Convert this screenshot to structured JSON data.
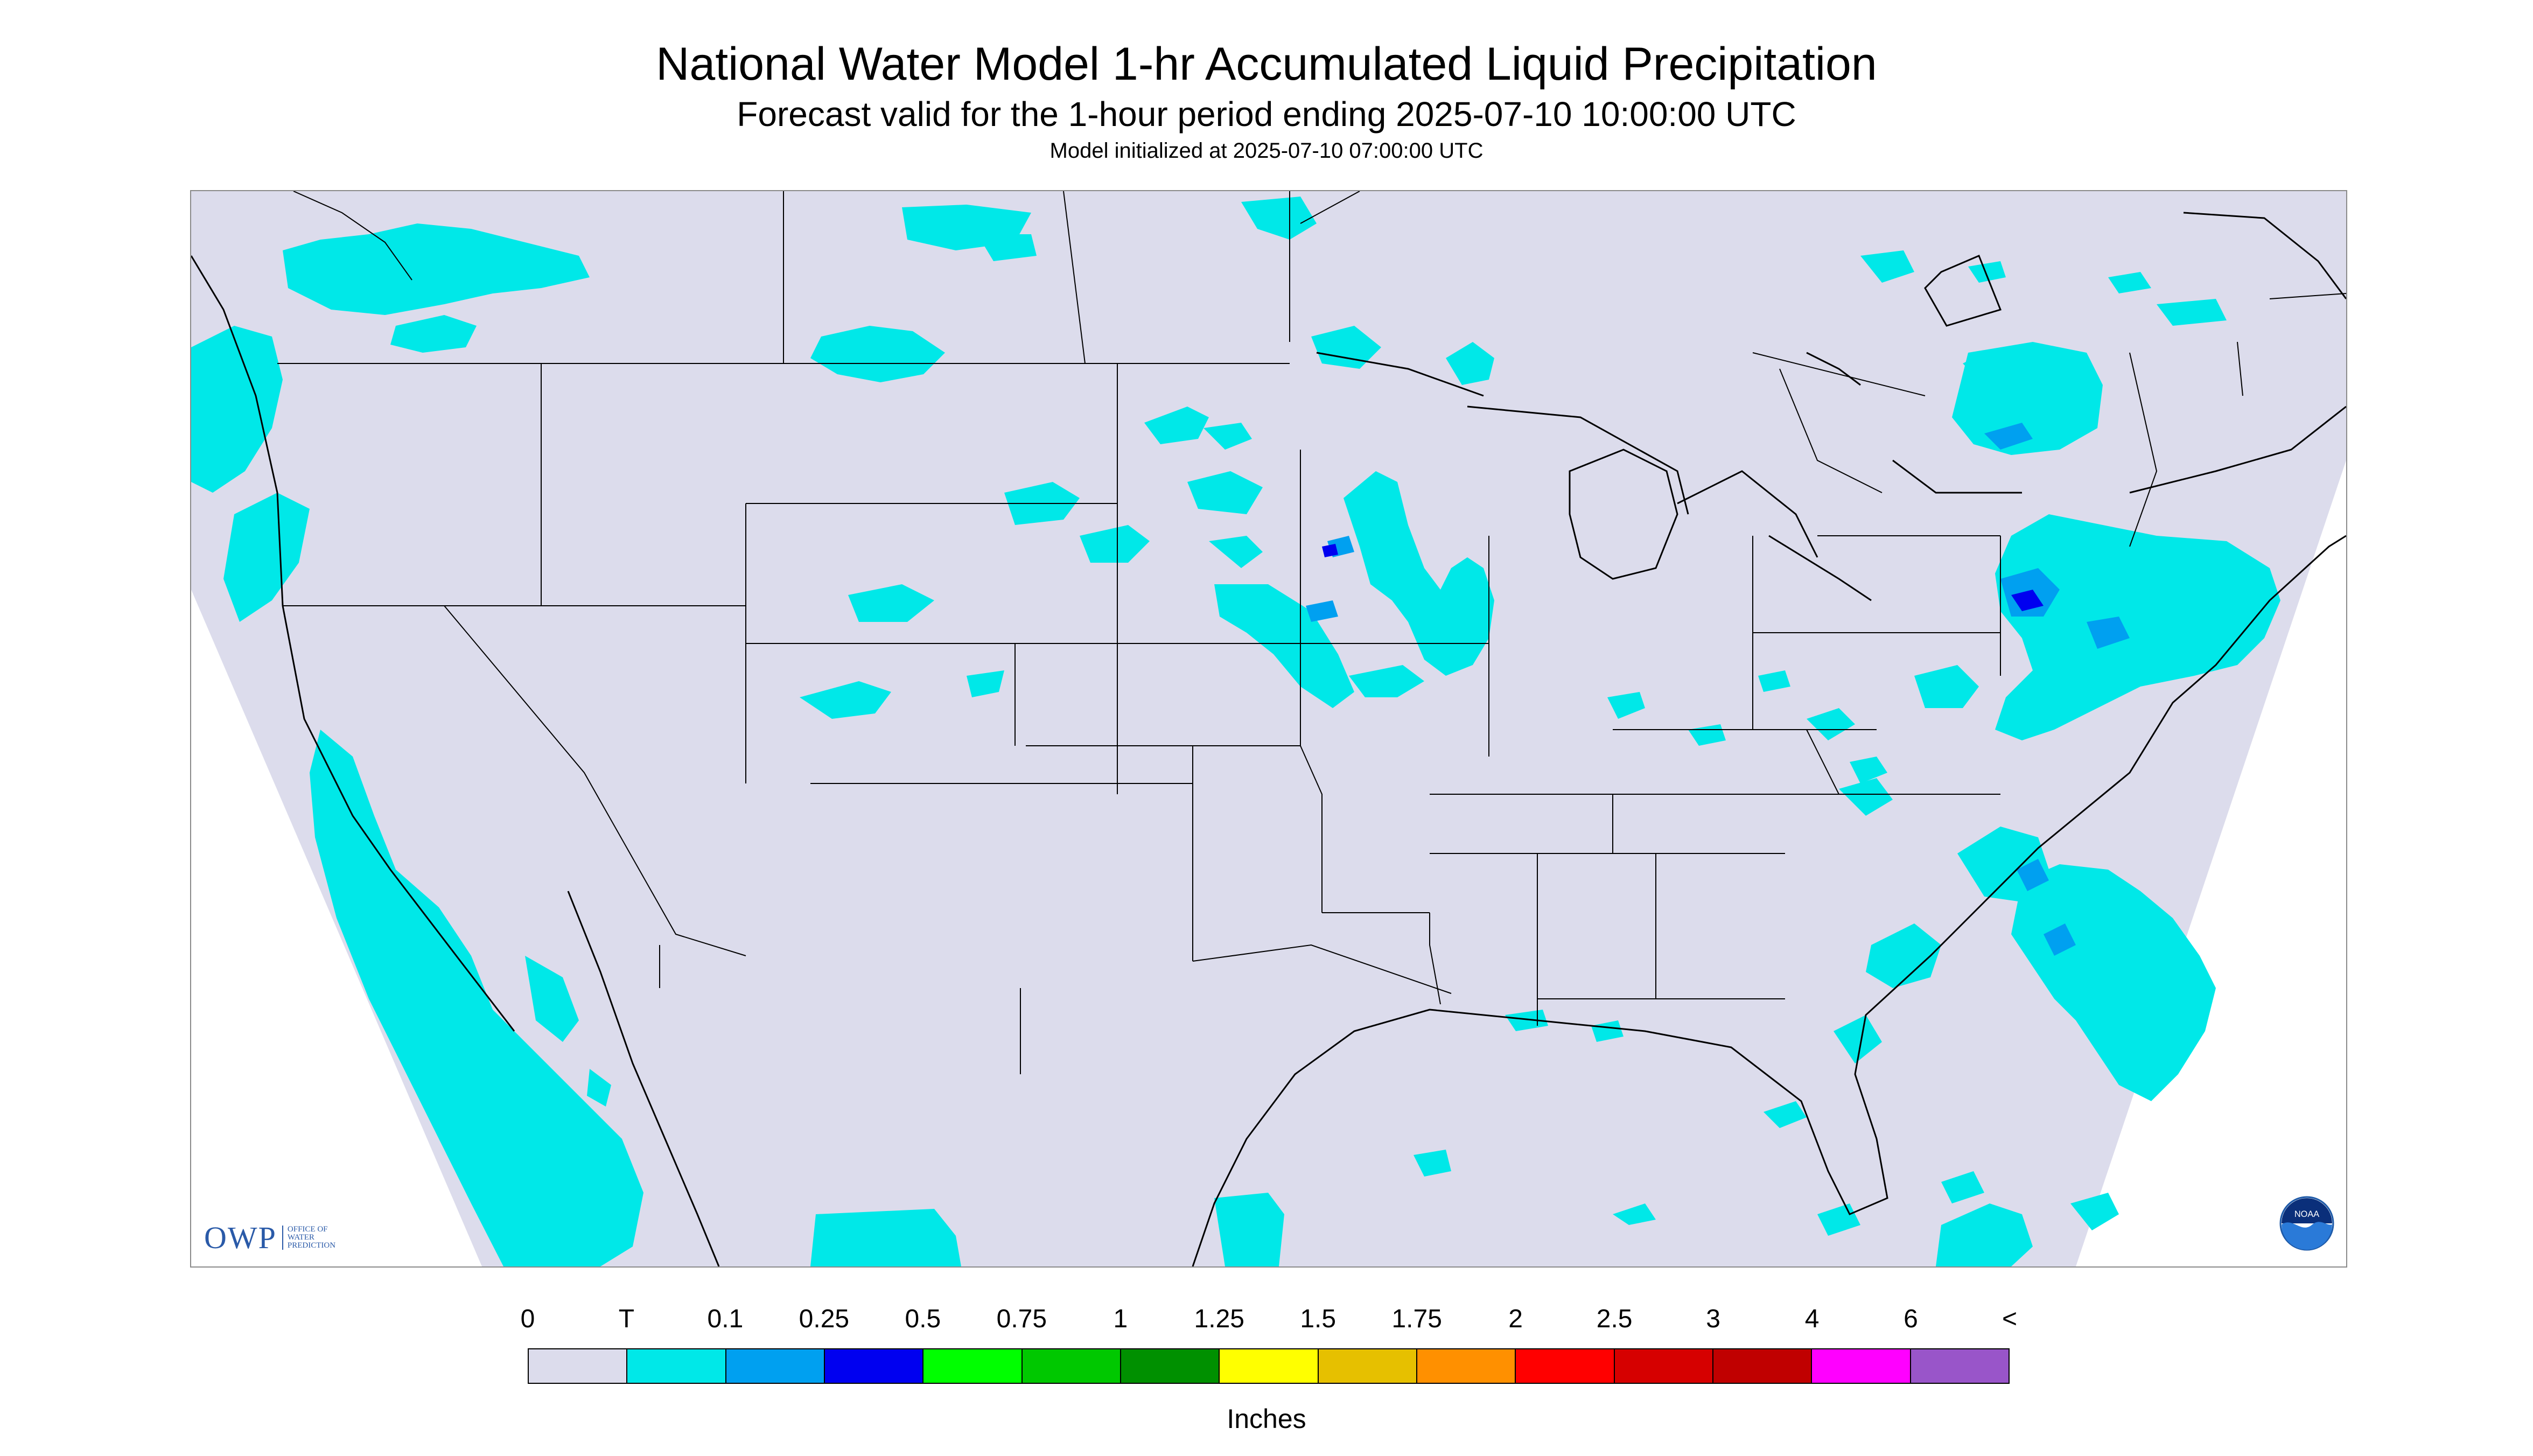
{
  "header": {
    "title": "National Water Model 1-hr Accumulated Liquid Precipitation",
    "subtitle": "Forecast valid for the 1-hour period ending 2025-07-10 10:00:00 UTC",
    "init": "Model initialized at 2025-07-10 07:00:00 UTC"
  },
  "logos": {
    "owp_text": "OWP",
    "owp_sub": [
      "OFFICE OF",
      "WATER",
      "PREDICTION"
    ],
    "noaa_text": "NOAA"
  },
  "map": {
    "background_color": "#dcdcec",
    "outside_domain_color": "#ffffff",
    "boundary_color": "#000000"
  },
  "legend": {
    "tick_labels": [
      "0",
      "T",
      "0.1",
      "0.25",
      "0.5",
      "0.75",
      "1",
      "1.25",
      "1.5",
      "1.75",
      "2",
      "2.5",
      "3",
      "4",
      "6",
      "<"
    ],
    "colors": [
      "#dcdcec",
      "#00e8e8",
      "#00a0f0",
      "#0000f0",
      "#00ff00",
      "#00c800",
      "#009000",
      "#ffff00",
      "#e6c000",
      "#ff9000",
      "#ff0000",
      "#d60000",
      "#c00000",
      "#ff00ff",
      "#9955c9"
    ],
    "units": "Inches"
  }
}
